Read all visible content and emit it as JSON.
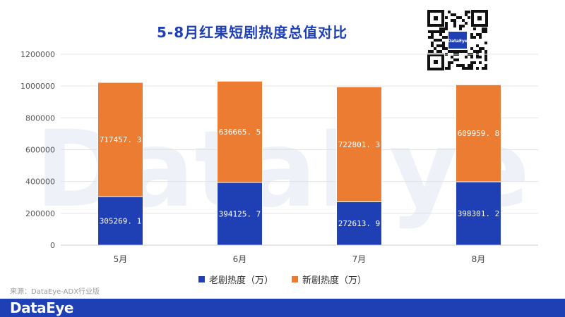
{
  "brand": {
    "name": "DataEye",
    "watermark": "DataEye"
  },
  "source": "来源：DataEye-ADX行业版",
  "colors": {
    "old": "#1f3fb4",
    "new": "#ec7c32",
    "title": "#1f3fb4",
    "footer": "#1f3fb4"
  },
  "chart_data": {
    "type": "bar",
    "stacked": true,
    "title": "5-8月红果短剧热度总值对比",
    "categories": [
      "5月",
      "6月",
      "7月",
      "8月"
    ],
    "series": [
      {
        "name": "老剧热度（万）",
        "values": [
          305269.1,
          394125.7,
          272613.9,
          398301.2
        ],
        "labels": [
          "305269. 1",
          "394125. 7",
          "272613. 9",
          "398301. 2"
        ]
      },
      {
        "name": "新剧热度（万）",
        "values": [
          717457.3,
          636665.5,
          722801.3,
          609959.8
        ],
        "labels": [
          "717457. 3",
          "636665. 5",
          "722801. 3",
          "609959. 8"
        ]
      }
    ],
    "ylim": [
      0,
      1200000
    ],
    "yticks": [
      0,
      200000,
      400000,
      600000,
      800000,
      1000000,
      1200000
    ],
    "ytick_labels": [
      "0",
      "200000",
      "400000",
      "600000",
      "800000",
      "1000000",
      "1200000"
    ],
    "grid": true,
    "legend": "bottom"
  }
}
